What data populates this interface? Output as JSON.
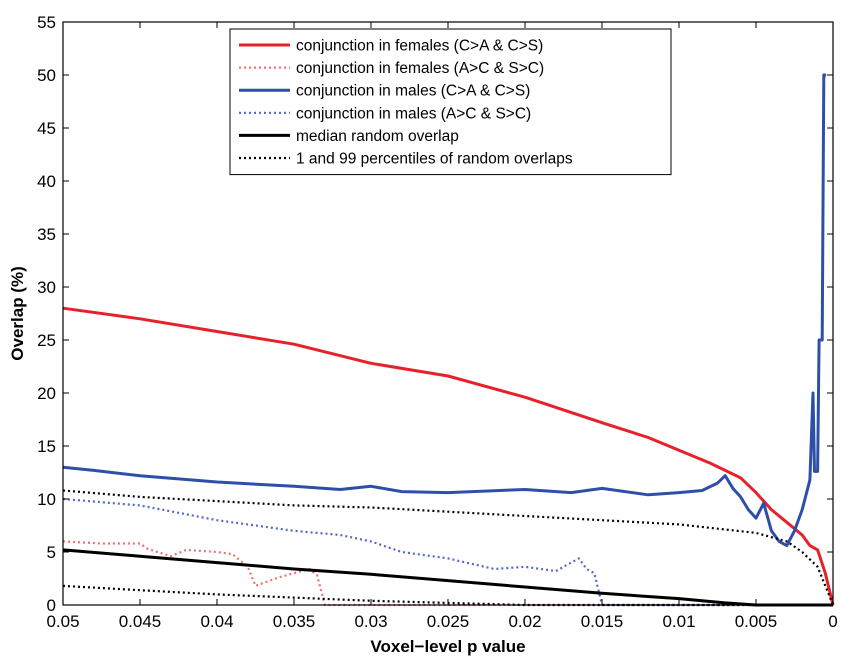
{
  "chart_data": {
    "type": "line",
    "title": "",
    "xlabel": "Voxel−level p value",
    "ylabel": "Overlap (%)",
    "xlim": [
      0.05,
      0
    ],
    "x_reversed": true,
    "ylim": [
      0,
      55
    ],
    "x_ticks": [
      {
        "value": 0.05,
        "label": "0.05"
      },
      {
        "value": 0.045,
        "label": "0.045"
      },
      {
        "value": 0.04,
        "label": "0.04"
      },
      {
        "value": 0.035,
        "label": "0.035"
      },
      {
        "value": 0.03,
        "label": "0.03"
      },
      {
        "value": 0.025,
        "label": "0.025"
      },
      {
        "value": 0.02,
        "label": "0.02"
      },
      {
        "value": 0.015,
        "label": "0.015"
      },
      {
        "value": 0.01,
        "label": "0.01"
      },
      {
        "value": 0.005,
        "label": "0.005"
      },
      {
        "value": 0,
        "label": "0"
      }
    ],
    "y_ticks": [
      {
        "value": 0,
        "label": "0"
      },
      {
        "value": 5,
        "label": "5"
      },
      {
        "value": 10,
        "label": "10"
      },
      {
        "value": 15,
        "label": "15"
      },
      {
        "value": 20,
        "label": "20"
      },
      {
        "value": 25,
        "label": "25"
      },
      {
        "value": 30,
        "label": "30"
      },
      {
        "value": 35,
        "label": "35"
      },
      {
        "value": 40,
        "label": "40"
      },
      {
        "value": 45,
        "label": "45"
      },
      {
        "value": 50,
        "label": "50"
      },
      {
        "value": 55,
        "label": "55"
      }
    ],
    "grid": false,
    "legend_position": "top-center",
    "series": [
      {
        "name": "conjunction in females (C>A & C>S)",
        "color": "#e8202a",
        "style": "solid",
        "points": [
          [
            0.05,
            28.0
          ],
          [
            0.045,
            27.0
          ],
          [
            0.04,
            25.8
          ],
          [
            0.035,
            24.6
          ],
          [
            0.03,
            22.8
          ],
          [
            0.025,
            21.6
          ],
          [
            0.02,
            19.6
          ],
          [
            0.015,
            17.2
          ],
          [
            0.012,
            15.8
          ],
          [
            0.01,
            14.6
          ],
          [
            0.008,
            13.4
          ],
          [
            0.006,
            12.0
          ],
          [
            0.005,
            10.6
          ],
          [
            0.004,
            9.0
          ],
          [
            0.003,
            7.8
          ],
          [
            0.002,
            6.6
          ],
          [
            0.0015,
            5.6
          ],
          [
            0.001,
            5.2
          ],
          [
            0.0005,
            3.0
          ],
          [
            0.0,
            0.0
          ]
        ]
      },
      {
        "name": "conjunction in females (A>C & S>C)",
        "color": "#f07070",
        "style": "dotted",
        "points": [
          [
            0.05,
            6.0
          ],
          [
            0.0475,
            5.8
          ],
          [
            0.045,
            5.8
          ],
          [
            0.0445,
            5.3
          ],
          [
            0.043,
            4.6
          ],
          [
            0.042,
            5.2
          ],
          [
            0.04,
            5.0
          ],
          [
            0.039,
            4.8
          ],
          [
            0.038,
            3.6
          ],
          [
            0.0375,
            1.8
          ],
          [
            0.036,
            2.6
          ],
          [
            0.035,
            3.0
          ],
          [
            0.034,
            3.4
          ],
          [
            0.0335,
            2.8
          ],
          [
            0.033,
            0.0
          ],
          [
            0.02,
            0.0
          ],
          [
            0.0,
            0.0
          ]
        ]
      },
      {
        "name": "conjunction in males (C>A & C>S)",
        "color": "#2d4fa8",
        "style": "solid",
        "points": [
          [
            0.05,
            13.0
          ],
          [
            0.048,
            12.7
          ],
          [
            0.045,
            12.2
          ],
          [
            0.04,
            11.6
          ],
          [
            0.035,
            11.2
          ],
          [
            0.032,
            10.9
          ],
          [
            0.03,
            11.2
          ],
          [
            0.028,
            10.7
          ],
          [
            0.025,
            10.6
          ],
          [
            0.02,
            10.9
          ],
          [
            0.017,
            10.6
          ],
          [
            0.015,
            11.0
          ],
          [
            0.012,
            10.4
          ],
          [
            0.01,
            10.6
          ],
          [
            0.0085,
            10.8
          ],
          [
            0.0075,
            11.5
          ],
          [
            0.007,
            12.2
          ],
          [
            0.0065,
            11.0
          ],
          [
            0.006,
            10.2
          ],
          [
            0.0055,
            9.0
          ],
          [
            0.005,
            8.2
          ],
          [
            0.0045,
            9.6
          ],
          [
            0.004,
            7.0
          ],
          [
            0.0035,
            6.0
          ],
          [
            0.003,
            5.6
          ],
          [
            0.0025,
            7.0
          ],
          [
            0.002,
            9.0
          ],
          [
            0.0015,
            11.8
          ],
          [
            0.0013,
            20.0
          ],
          [
            0.0012,
            12.6
          ],
          [
            0.001,
            12.6
          ],
          [
            0.0009,
            25.0
          ],
          [
            0.0007,
            25.0
          ],
          [
            0.0006,
            50.0
          ],
          [
            0.00045,
            50.0
          ]
        ]
      },
      {
        "name": "conjunction in males (A>C & S>C)",
        "color": "#5566cc",
        "style": "dotted",
        "points": [
          [
            0.05,
            10.0
          ],
          [
            0.045,
            9.4
          ],
          [
            0.04,
            8.0
          ],
          [
            0.035,
            7.0
          ],
          [
            0.032,
            6.6
          ],
          [
            0.03,
            6.0
          ],
          [
            0.028,
            5.0
          ],
          [
            0.025,
            4.4
          ],
          [
            0.022,
            3.4
          ],
          [
            0.02,
            3.6
          ],
          [
            0.018,
            3.2
          ],
          [
            0.0165,
            4.4
          ],
          [
            0.016,
            3.4
          ],
          [
            0.0155,
            3.0
          ],
          [
            0.015,
            0.0
          ],
          [
            0.0,
            0.0
          ]
        ]
      },
      {
        "name": "median random overlap",
        "color": "#000000",
        "style": "solid",
        "points": [
          [
            0.05,
            5.2
          ],
          [
            0.045,
            4.6
          ],
          [
            0.04,
            4.0
          ],
          [
            0.035,
            3.4
          ],
          [
            0.03,
            2.9
          ],
          [
            0.025,
            2.3
          ],
          [
            0.02,
            1.7
          ],
          [
            0.015,
            1.1
          ],
          [
            0.01,
            0.6
          ],
          [
            0.007,
            0.2
          ],
          [
            0.005,
            0.0
          ],
          [
            0.0,
            0.0
          ]
        ]
      },
      {
        "name": "1 and 99 percentiles of random overlaps",
        "color": "#000000",
        "style": "dotted",
        "points": [
          [
            0.05,
            10.8
          ],
          [
            0.045,
            10.2
          ],
          [
            0.04,
            9.8
          ],
          [
            0.035,
            9.4
          ],
          [
            0.03,
            9.2
          ],
          [
            0.025,
            8.8
          ],
          [
            0.02,
            8.4
          ],
          [
            0.015,
            8.0
          ],
          [
            0.01,
            7.6
          ],
          [
            0.005,
            6.8
          ],
          [
            0.003,
            6.0
          ],
          [
            0.002,
            5.0
          ],
          [
            0.001,
            3.6
          ],
          [
            0.0005,
            1.8
          ],
          [
            0.0,
            0.0
          ]
        ]
      },
      {
        "name": "",
        "legend_hidden": true,
        "color": "#000000",
        "style": "dotted",
        "points": [
          [
            0.05,
            1.8
          ],
          [
            0.045,
            1.4
          ],
          [
            0.04,
            1.0
          ],
          [
            0.035,
            0.7
          ],
          [
            0.03,
            0.4
          ],
          [
            0.025,
            0.2
          ],
          [
            0.02,
            0.0
          ],
          [
            0.0,
            0.0
          ]
        ]
      }
    ]
  }
}
